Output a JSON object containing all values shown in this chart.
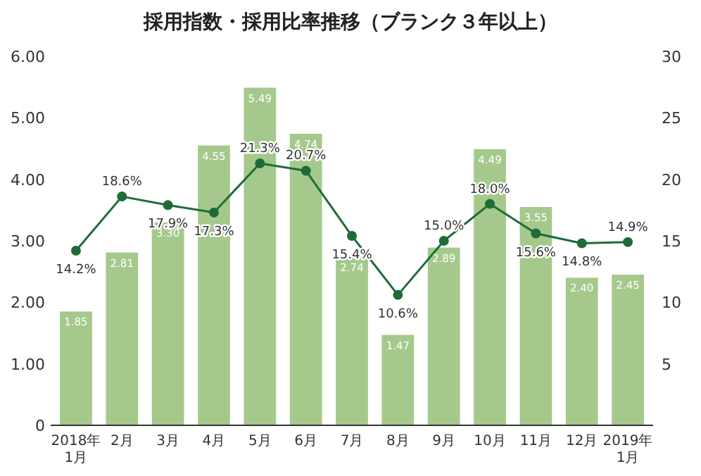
{
  "chart_data": {
    "type": "bar",
    "title": "採用指数・採用比率推移（ブランク３年以上）",
    "categories": [
      "2018年\n1月",
      "2月",
      "3月",
      "4月",
      "5月",
      "6月",
      "7月",
      "8月",
      "9月",
      "10月",
      "11月",
      "12月",
      "2019年\n1月"
    ],
    "series": [
      {
        "color": "#a5c98c",
        "values": [
          1.85,
          2.81,
          3.3,
          4.55,
          5.49,
          4.74,
          2.74,
          1.47,
          2.89,
          4.49,
          3.55,
          2.4,
          2.45
        ],
        "value_labels": [
          "1.85",
          "2.81",
          "3.30",
          "4.55",
          "5.49",
          "4.74",
          "2.74",
          "1.47",
          "2.89",
          "4.49",
          "3.55",
          "2.40",
          "2.45"
        ]
      },
      {
        "type": "line",
        "axis": "y2",
        "color": "#1f6b38",
        "values": [
          14.2,
          18.6,
          17.9,
          17.3,
          21.3,
          20.7,
          15.4,
          10.6,
          15.0,
          18.0,
          15.6,
          14.8,
          14.9
        ],
        "value_labels": [
          "14.2%",
          "18.6%",
          "17.9%",
          "17.3%",
          "21.3%",
          "20.7%",
          "15.4%",
          "10.6%",
          "15.0%",
          "18.0%",
          "15.6%",
          "14.8%",
          "14.9%"
        ]
      }
    ],
    "ylim": [
      0,
      6
    ],
    "yticks": [
      0,
      {
        "value": 1,
        "label": "1.00"
      },
      {
        "value": 2,
        "label": "2.00"
      },
      {
        "value": 3,
        "label": "3.00"
      },
      {
        "value": 4,
        "label": "4.00"
      },
      {
        "value": 5,
        "label": "5.00"
      },
      {
        "value": 6,
        "label": "6.00"
      }
    ],
    "y2lim": [
      0,
      30
    ],
    "y2ticks": [
      5,
      10,
      15,
      20,
      25,
      30
    ],
    "marker": "circle",
    "line_style": "solid",
    "grid": false
  }
}
